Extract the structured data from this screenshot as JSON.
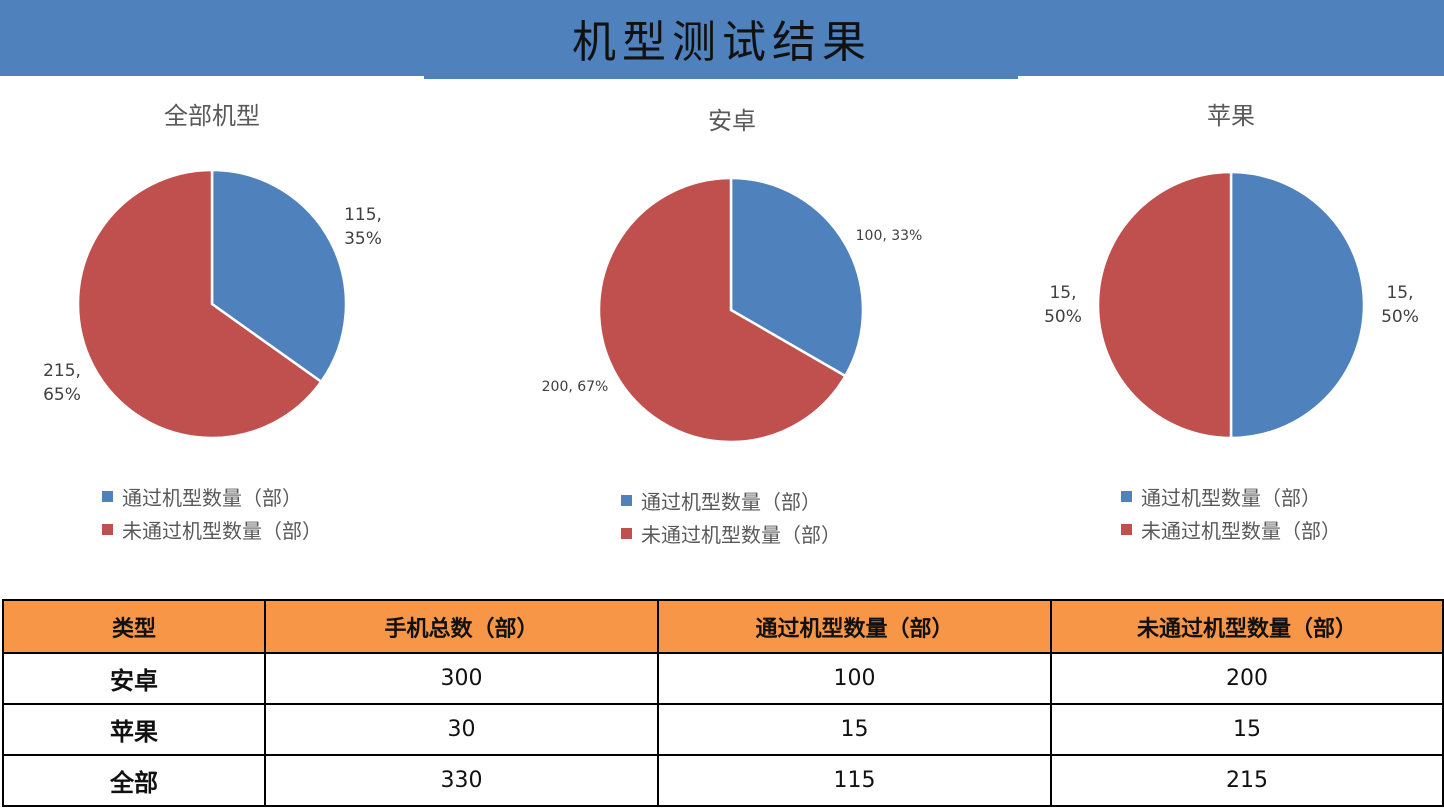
{
  "header": {
    "title": "机型测试结果"
  },
  "colors": {
    "header_bg": "#4f81bd",
    "passed": "#4f81bd",
    "failed": "#c0504d",
    "table_header_bg": "#f79646"
  },
  "legend": {
    "passed": "通过机型数量（部）",
    "failed": "未通过机型数量（部）"
  },
  "chart_data": [
    {
      "type": "pie",
      "title": "全部机型",
      "categories": [
        "通过机型数量（部）",
        "未通过机型数量（部）"
      ],
      "values": [
        115,
        215
      ],
      "data_labels": [
        "115,\n35%",
        "215,\n65%"
      ]
    },
    {
      "type": "pie",
      "title": "安卓",
      "categories": [
        "通过机型数量（部）",
        "未通过机型数量（部）"
      ],
      "values": [
        100,
        200
      ],
      "data_labels": [
        "100, 33%",
        "200, 67%"
      ]
    },
    {
      "type": "pie",
      "title": "苹果",
      "categories": [
        "通过机型数量（部）",
        "未通过机型数量（部）"
      ],
      "values": [
        15,
        15
      ],
      "data_labels": [
        "15,\n50%",
        "15,\n50%"
      ]
    }
  ],
  "table": {
    "headers": [
      "类型",
      "手机总数（部）",
      "通过机型数量（部）",
      "未通过机型数量（部）"
    ],
    "rows": [
      [
        "安卓",
        "300",
        "100",
        "200"
      ],
      [
        "苹果",
        "30",
        "15",
        "15"
      ],
      [
        "全部",
        "330",
        "115",
        "215"
      ]
    ]
  }
}
